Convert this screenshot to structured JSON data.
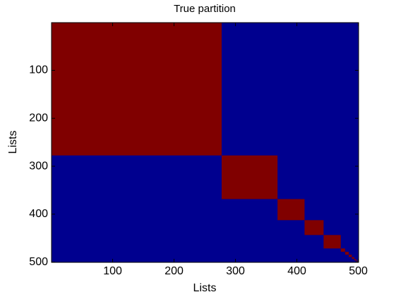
{
  "chart_data": {
    "type": "heatmap",
    "title": "True partition",
    "xlabel": "Lists",
    "ylabel": "Lists",
    "block_ends": [
      277,
      368,
      412,
      443,
      471,
      478,
      484,
      489,
      493,
      496,
      498,
      500
    ],
    "in_color": "#800000",
    "out_color": "#00008f",
    "xlim": [
      0.5,
      500.5
    ],
    "ylim": [
      0.5,
      500.5
    ],
    "y_reversed": true,
    "xticks": [
      100,
      200,
      300,
      400,
      500
    ],
    "yticks": [
      100,
      200,
      300,
      400,
      500
    ]
  }
}
